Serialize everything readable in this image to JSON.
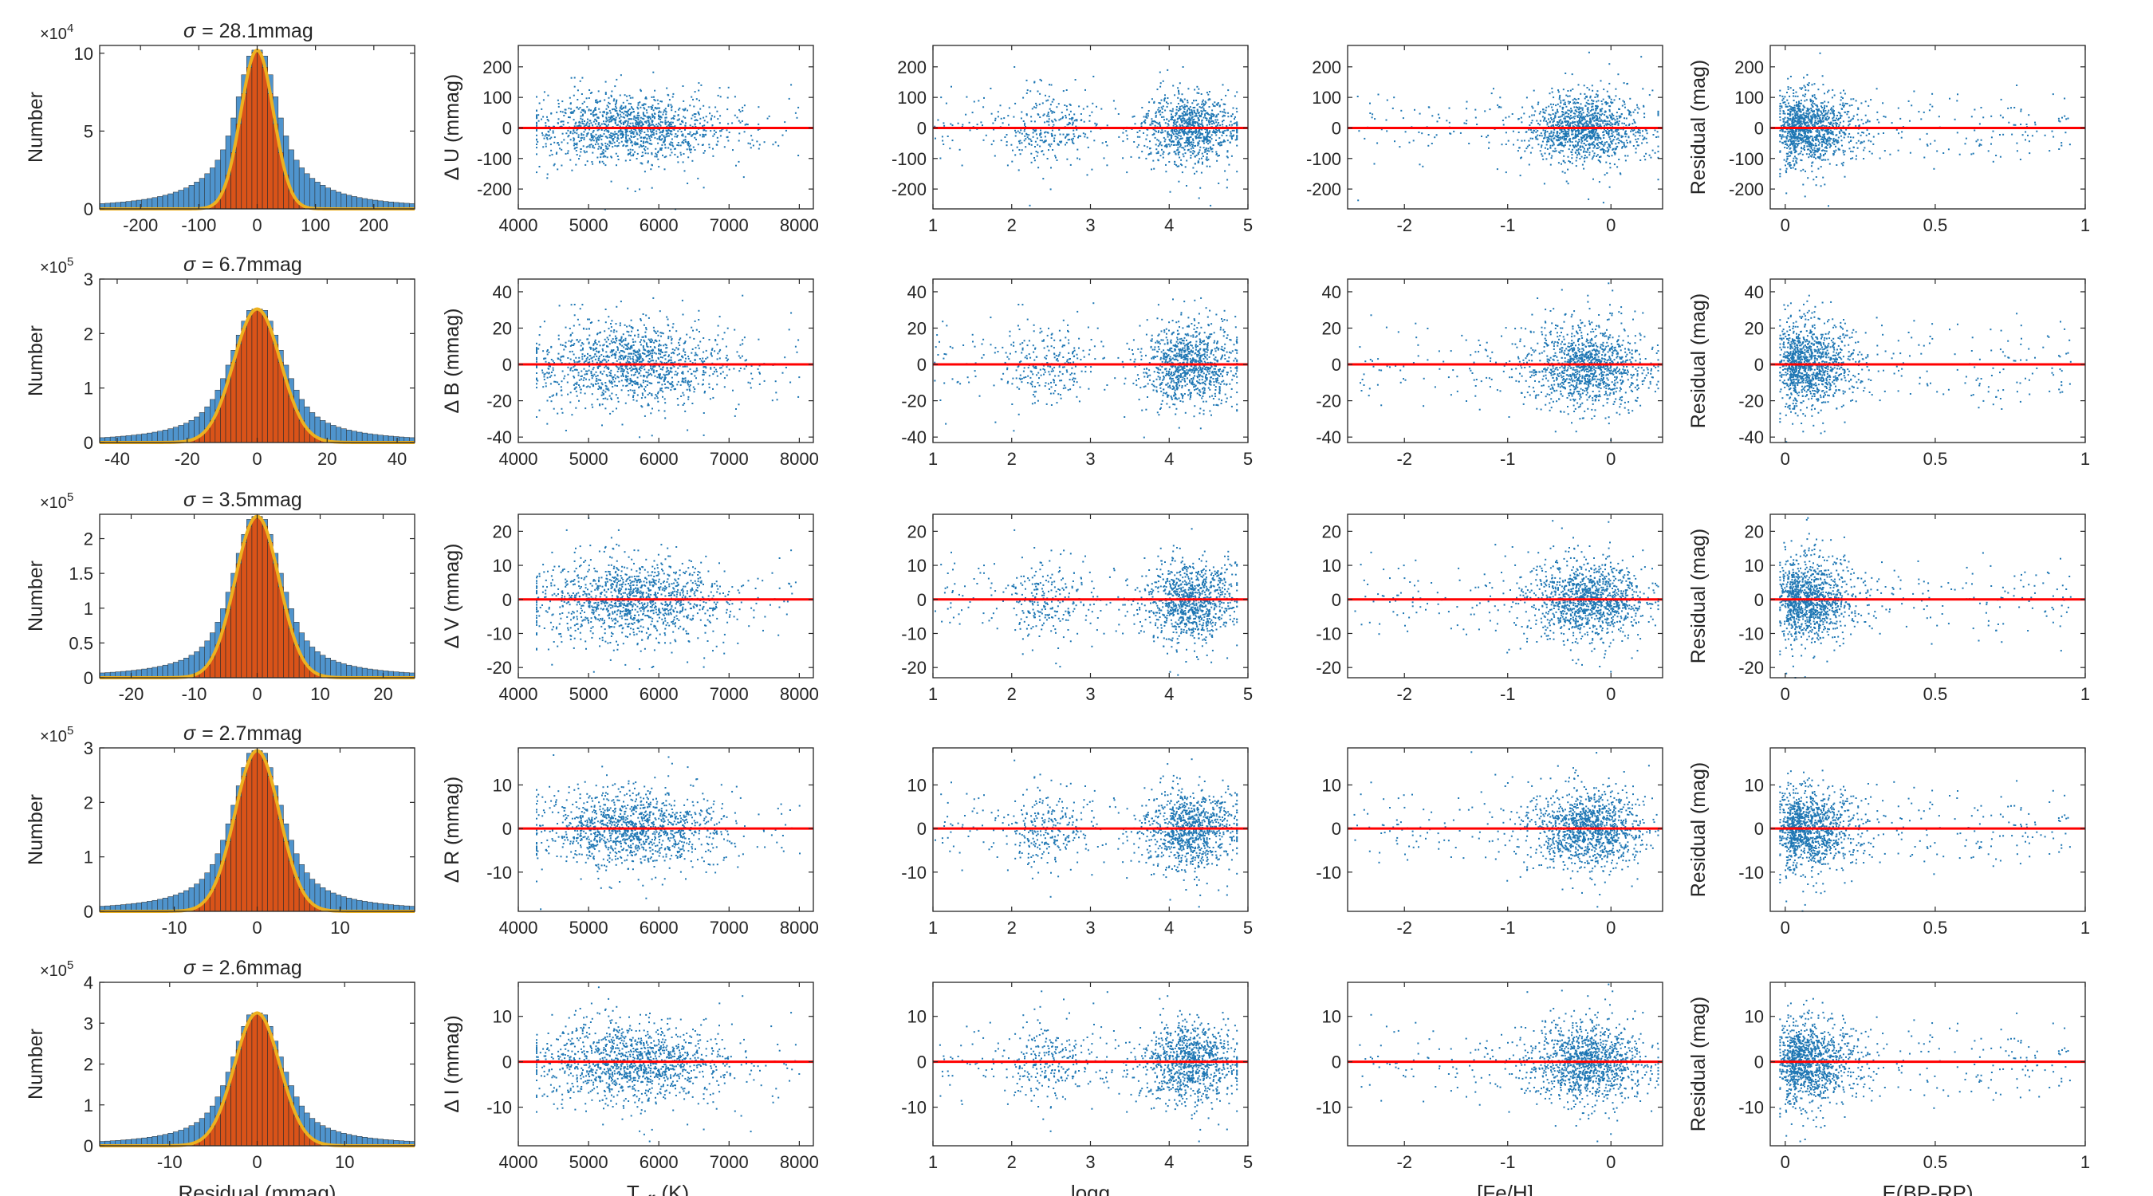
{
  "figure": {
    "x_labels": [
      "Residual (mmag)",
      "T_eff (K)",
      "logg",
      "[Fe/H]",
      "E(BP-RP)"
    ],
    "teff_label": {
      "main": "T",
      "sub": "eff",
      "unit": "(K)"
    },
    "resid_label": "Residual (mag)",
    "number_label": "Number"
  },
  "colors": {
    "scatter": "#1f77b4",
    "zero_line": "#ff0000",
    "hist_outer": "#4f94cd",
    "hist_inner": "#d95319",
    "gauss_fit": "#edb120",
    "axis": "#262626"
  },
  "chart_data": [
    {
      "type": "bar",
      "band": "U",
      "title": "σ = 28.1mmag",
      "sigma_text": "σ",
      "sigma_value": "= 28.1mmag",
      "xlim": [
        -270,
        270
      ],
      "xticks": [
        "-200",
        "-100",
        "0",
        "100",
        "200"
      ],
      "xtick_values": [
        -200,
        -100,
        0,
        100,
        200
      ],
      "ylim": [
        0,
        10.5
      ],
      "yticks": [
        "0",
        "5",
        "10"
      ],
      "ytick_values": [
        0,
        5,
        10
      ],
      "multiplier": "×10",
      "exponent": "4",
      "peak": 10.2,
      "sigma_core": 28.1,
      "wing_width": 80,
      "xlabel": "",
      "ylabel": "Number"
    },
    {
      "type": "bar",
      "band": "B",
      "title": "σ = 6.7mmag",
      "sigma_text": "σ",
      "sigma_value": "= 6.7mmag",
      "xlim": [
        -45,
        45
      ],
      "xticks": [
        "-40",
        "-20",
        "0",
        "20",
        "40"
      ],
      "xtick_values": [
        -40,
        -20,
        0,
        20,
        40
      ],
      "ylim": [
        0,
        3
      ],
      "yticks": [
        "0",
        "1",
        "2",
        "3"
      ],
      "ytick_values": [
        0,
        1,
        2,
        3
      ],
      "multiplier": "×10",
      "exponent": "5",
      "peak": 2.45,
      "sigma_core": 6.7,
      "wing_width": 14,
      "xlabel": "",
      "ylabel": "Number"
    },
    {
      "type": "bar",
      "band": "V",
      "title": "σ = 3.5mmag",
      "sigma_text": "σ",
      "sigma_value": "= 3.5mmag",
      "xlim": [
        -25,
        25
      ],
      "xticks": [
        "-20",
        "-10",
        "0",
        "10",
        "20"
      ],
      "xtick_values": [
        -20,
        -10,
        0,
        10,
        20
      ],
      "ylim": [
        0,
        2.35
      ],
      "yticks": [
        "0",
        "0.5",
        "1",
        "1.5",
        "2"
      ],
      "ytick_values": [
        0,
        0.5,
        1,
        1.5,
        2
      ],
      "multiplier": "×10",
      "exponent": "5",
      "peak": 2.32,
      "sigma_core": 3.5,
      "wing_width": 7,
      "xlabel": "",
      "ylabel": "Number"
    },
    {
      "type": "bar",
      "band": "R",
      "title": "σ = 2.7mmag",
      "sigma_text": "σ",
      "sigma_value": "= 2.7mmag",
      "xlim": [
        -19,
        19
      ],
      "xticks": [
        "-10",
        "0",
        "10"
      ],
      "xtick_values": [
        -10,
        0,
        10
      ],
      "ylim": [
        0,
        3
      ],
      "yticks": [
        "0",
        "1",
        "2",
        "3"
      ],
      "ytick_values": [
        0,
        1,
        2,
        3
      ],
      "multiplier": "×10",
      "exponent": "5",
      "peak": 2.95,
      "sigma_core": 2.7,
      "wing_width": 5.5,
      "xlabel": "",
      "ylabel": "Number"
    },
    {
      "type": "bar",
      "band": "I",
      "title": "σ = 2.6mmag",
      "sigma_text": "σ",
      "sigma_value": "= 2.6mmag",
      "xlim": [
        -18,
        18
      ],
      "xticks": [
        "-10",
        "0",
        "10"
      ],
      "xtick_values": [
        -10,
        0,
        10
      ],
      "ylim": [
        0,
        4
      ],
      "yticks": [
        "0",
        "1",
        "2",
        "3",
        "4"
      ],
      "ytick_values": [
        0,
        1,
        2,
        3,
        4
      ],
      "multiplier": "×10",
      "exponent": "5",
      "peak": 3.25,
      "sigma_core": 2.6,
      "wing_width": 5.3,
      "xlabel": "Residual (mmag)",
      "ylabel": "Number"
    },
    {
      "type": "scatter-grid",
      "bands": [
        {
          "name": "U",
          "ylabel": "Δ U (mmag)",
          "ylim": [
            -265,
            270
          ],
          "yticks": [
            "-200",
            "-100",
            "0",
            "100",
            "200"
          ],
          "ytick_values": [
            -200,
            -100,
            0,
            100,
            200
          ],
          "sigma": 55
        },
        {
          "name": "B",
          "ylabel": "Δ B (mmag)",
          "ylim": [
            -43,
            47
          ],
          "yticks": [
            "-40",
            "-20",
            "0",
            "20",
            "40"
          ],
          "ytick_values": [
            -40,
            -20,
            0,
            20,
            40
          ],
          "sigma": 11
        },
        {
          "name": "V",
          "ylabel": "Δ V (mmag)",
          "ylim": [
            -23,
            25
          ],
          "yticks": [
            "-20",
            "-10",
            "0",
            "10",
            "20"
          ],
          "ytick_values": [
            -20,
            -10,
            0,
            10,
            20
          ],
          "sigma": 5.6
        },
        {
          "name": "R",
          "ylabel": "Δ R (mmag)",
          "ylim": [
            -19,
            18.5
          ],
          "yticks": [
            "-10",
            "0",
            "10"
          ],
          "ytick_values": [
            -10,
            0,
            10
          ],
          "sigma": 4.3
        },
        {
          "name": "I",
          "ylabel": "Δ I (mmag)",
          "ylim": [
            -18.5,
            17.5
          ],
          "yticks": [
            "-10",
            "0",
            "10"
          ],
          "ytick_values": [
            -10,
            0,
            10
          ],
          "sigma": 4.2
        }
      ],
      "params": [
        {
          "name": "Teff",
          "xlim": [
            4000,
            8200
          ],
          "xticks": [
            "4000",
            "5000",
            "6000",
            "7000",
            "8000"
          ],
          "xtick_values": [
            4000,
            5000,
            6000,
            7000,
            8000
          ]
        },
        {
          "name": "logg",
          "xlim": [
            1,
            5
          ],
          "xticks": [
            "1",
            "2",
            "3",
            "4",
            "5"
          ],
          "xtick_values": [
            1,
            2,
            3,
            4,
            5
          ]
        },
        {
          "name": "[Fe/H]",
          "xlim": [
            -2.55,
            0.5
          ],
          "xticks": [
            "-2",
            "-1",
            "0"
          ],
          "xtick_values": [
            -2,
            -1,
            0
          ]
        },
        {
          "name": "E(BP-RP)",
          "xlim": [
            -0.05,
            1.0
          ],
          "xticks": [
            "0",
            "0.5",
            "1"
          ],
          "xtick_values": [
            0,
            0.5,
            1
          ]
        }
      ],
      "zero_line": 0
    }
  ]
}
